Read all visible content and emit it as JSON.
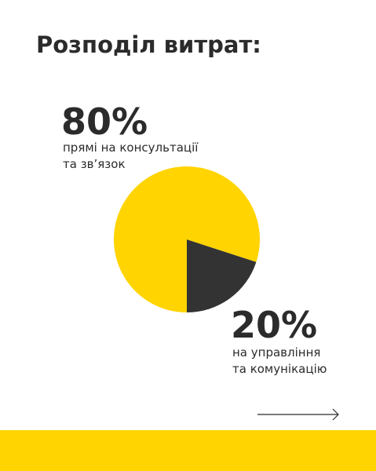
{
  "chart_data": {
    "type": "pie",
    "title": "Розподіл витрат:",
    "categories": [
      "прямі на консультації та зв’язок",
      "на управління та комунікацію"
    ],
    "values": [
      80,
      20
    ],
    "value_labels": [
      "80%",
      "20%"
    ],
    "colors": [
      "#FFD400",
      "#333333"
    ]
  }
}
